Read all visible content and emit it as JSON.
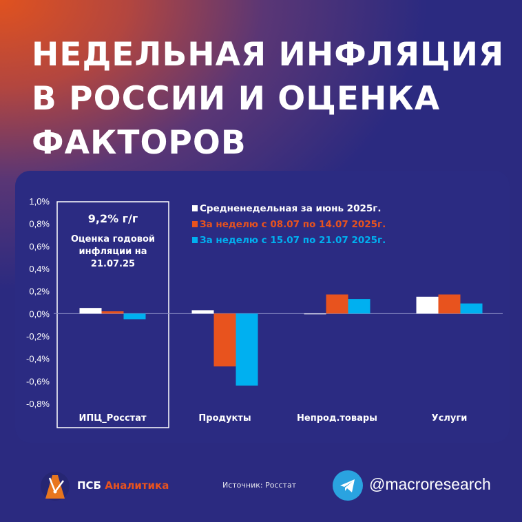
{
  "title_lines": [
    "НЕДЕЛЬНАЯ ИНФЛЯЦИЯ",
    "В РОССИИ И ОЦЕНКА",
    "ФАКТОРОВ"
  ],
  "chart_data": {
    "type": "bar",
    "categories": [
      "ИПЦ_Росстат",
      "Продукты",
      "Непрод.товары",
      "Услуги"
    ],
    "series": [
      {
        "name": "Средненедельная за июнь 2025г.",
        "color": "#ffffff",
        "values": [
          0.05,
          0.03,
          0.0,
          0.15
        ]
      },
      {
        "name": "За неделю с 08.07 по 14.07 2025г.",
        "color": "#e8531e",
        "values": [
          0.02,
          -0.47,
          0.17,
          0.17
        ]
      },
      {
        "name": "За неделю с 15.07 по 21.07 2025г.",
        "color": "#00b0f0",
        "values": [
          -0.05,
          -0.64,
          0.13,
          0.09
        ]
      }
    ],
    "yticks": [
      "1,0%",
      "0,8%",
      "0,6%",
      "0,4%",
      "0,2%",
      "0,0%",
      "-0,2%",
      "-0,4%",
      "-0,6%",
      "-0,8%"
    ],
    "ylim": [
      -0.8,
      1.0
    ],
    "grid": false,
    "legend": "top-right",
    "annotation": {
      "headline": "9,2% г/г",
      "lines": [
        "Оценка годовой",
        "инфляции на",
        "21.07.25"
      ]
    }
  },
  "footer": {
    "brand_a": "ПСБ",
    "brand_b": "Аналитика",
    "source": "Источник: Росстат",
    "handle": "@macroresearch"
  }
}
